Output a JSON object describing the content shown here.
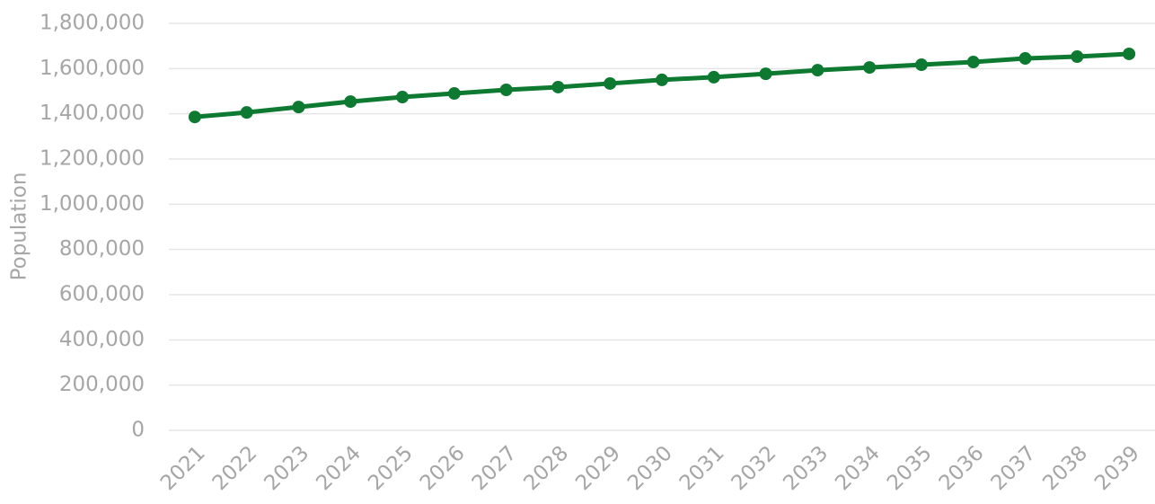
{
  "chart_data": {
    "type": "line",
    "y_label": "Population",
    "categories": [
      "2021",
      "2022",
      "2023",
      "2024",
      "2025",
      "2026",
      "2027",
      "2028",
      "2029",
      "2030",
      "2031",
      "2032",
      "2033",
      "2034",
      "2035",
      "2036",
      "2037",
      "2038",
      "2039"
    ],
    "series": [
      {
        "name": "Population",
        "color": "#0e7a31",
        "values": [
          1386000,
          1406000,
          1430000,
          1454000,
          1474000,
          1490000,
          1506000,
          1518000,
          1534000,
          1550000,
          1562000,
          1577000,
          1593000,
          1605000,
          1617000,
          1629000,
          1645000,
          1653000,
          1665000
        ]
      }
    ],
    "ylim": [
      0,
      1800000
    ],
    "yticks": [
      0,
      {
        "value": 200000,
        "label": "200,000"
      },
      {
        "value": 400000,
        "label": "400,000"
      },
      {
        "value": 600000,
        "label": "600,000"
      },
      {
        "value": 800000,
        "label": "800,000"
      },
      {
        "value": 1000000,
        "label": "1,000,000"
      },
      {
        "value": 1200000,
        "label": "1,200,000"
      },
      {
        "value": 1400000,
        "label": "1,400,000"
      },
      {
        "value": 1600000,
        "label": "1,600,000"
      },
      {
        "value": 1800000,
        "label": "1,800,000"
      }
    ],
    "grid": true
  }
}
